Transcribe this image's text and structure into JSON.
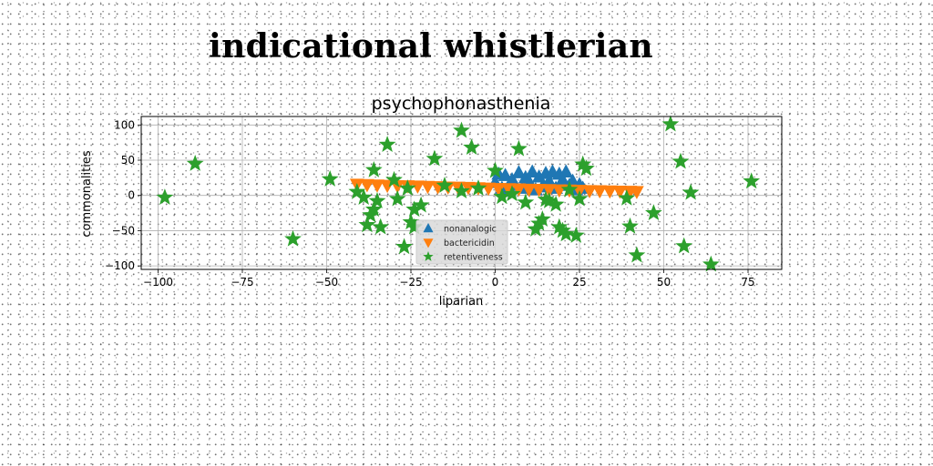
{
  "figure": {
    "title": "indicational whistlerian"
  },
  "chart_data": {
    "type": "scatter",
    "title": "psychophonasthenia",
    "xlabel": "liparian",
    "ylabel": "commonalities",
    "xlim": [
      -105,
      85
    ],
    "ylim": [
      -105,
      112
    ],
    "xticks": [
      -100,
      -75,
      -50,
      -25,
      0,
      25,
      50,
      75
    ],
    "yticks": [
      -100,
      -50,
      0,
      50,
      100
    ],
    "grid": true,
    "legend_position": "lower-center",
    "series": [
      {
        "name": "nonanalogic",
        "marker": "triangle-up",
        "color": "#1f77b4",
        "x": [
          0,
          1,
          2,
          3,
          4,
          5,
          6,
          7,
          8,
          9,
          10,
          11,
          12,
          13,
          14,
          15,
          16,
          17,
          18,
          19,
          20,
          21,
          22,
          23,
          24,
          25,
          26
        ],
        "y": [
          18,
          30,
          10,
          28,
          6,
          22,
          14,
          32,
          10,
          25,
          20,
          33,
          8,
          26,
          12,
          31,
          20,
          33,
          10,
          30,
          22,
          33,
          14,
          20,
          8,
          15,
          10
        ]
      },
      {
        "name": "bactericidin",
        "marker": "triangle-down",
        "color": "#ff7f0e",
        "x": [
          -41,
          -38,
          -35,
          -32,
          -29,
          -26,
          -23,
          -20,
          -17,
          -14,
          -11,
          -8,
          -5,
          -2,
          1,
          4,
          7,
          10,
          13,
          16,
          19,
          22,
          25,
          28,
          31,
          34,
          37,
          40,
          42
        ],
        "y": [
          16,
          15.5,
          15,
          14.5,
          14,
          13.8,
          13.5,
          13,
          12.5,
          12,
          11.8,
          11.5,
          11,
          10.5,
          10,
          9.8,
          9.5,
          9,
          8.8,
          8.5,
          8,
          7.8,
          7.5,
          7,
          6.8,
          6.5,
          6.2,
          6,
          5.8
        ]
      },
      {
        "name": "retentiveness",
        "marker": "star",
        "color": "#2ca02c",
        "x": [
          -98,
          -89,
          -60,
          -49,
          -41,
          -39,
          -38,
          -37,
          -36,
          -36,
          -35,
          -34,
          -32,
          -30,
          -29,
          -27,
          -26,
          -25,
          -24,
          -24,
          -22,
          -18,
          -15,
          -10,
          -10,
          -7,
          -5,
          0,
          2,
          5,
          7,
          9,
          12,
          13,
          14,
          15,
          16,
          18,
          19,
          20,
          21,
          22,
          24,
          25,
          26,
          27,
          39,
          40,
          42,
          47,
          52,
          55,
          56,
          58,
          64,
          76
        ],
        "y": [
          -3,
          45,
          -62,
          23,
          5,
          -3,
          -42,
          -28,
          -20,
          36,
          -8,
          -45,
          72,
          22,
          -5,
          -73,
          10,
          -38,
          -20,
          -45,
          -14,
          52,
          14,
          92,
          6,
          68,
          10,
          35,
          -2,
          2,
          66,
          -10,
          -48,
          -40,
          -34,
          -6,
          -8,
          -13,
          -45,
          -50,
          -55,
          8,
          -57,
          -5,
          44,
          38,
          -4,
          -44,
          -85,
          -25,
          101,
          48,
          -72,
          4,
          -98,
          20
        ]
      }
    ]
  }
}
